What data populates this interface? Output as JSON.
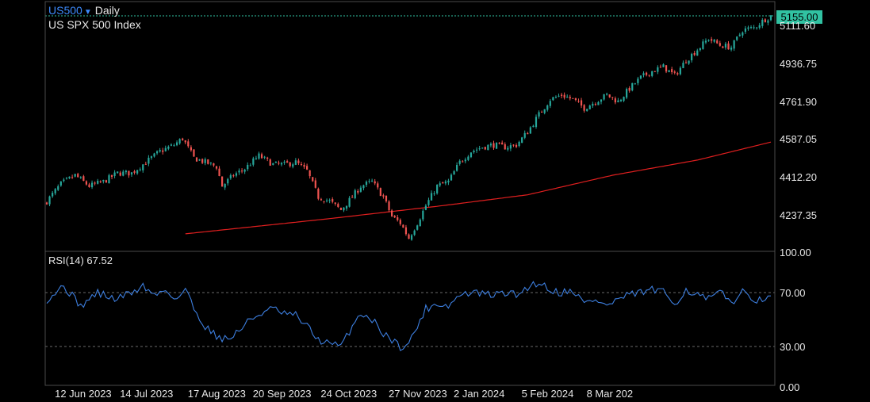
{
  "header": {
    "symbol": "US500",
    "symbol_dropdown_icon": "triangle-down-icon",
    "timeframe": "Daily",
    "instrument_name": "US SPX 500 Index"
  },
  "price_badge": "5155.00",
  "rsi_label": "RSI(14)",
  "rsi_value": "67.52",
  "colors": {
    "background": "#000000",
    "up": "#26a69a",
    "down": "#ef5350",
    "moving_average": "#e01f1f",
    "rsi": "#3d7fe0",
    "last_price": "#31c2a2",
    "grid_border": "#4a4a4a"
  },
  "chart_data": [
    {
      "type": "candlestick",
      "title": "US SPX 500 Index",
      "ylim": [
        4150,
        5200
      ],
      "y_tick_labels": [
        "5111.60",
        "4936.75",
        "4761.90",
        "4587.05",
        "4412.20",
        "4237.35"
      ],
      "y_ticks": [
        5111.6,
        4936.75,
        4761.9,
        4587.05,
        4412.2,
        4237.35
      ],
      "x_tick_labels": [
        "12 Jun 2023",
        "14 Jul 2023",
        "17 Aug 2023",
        "20 Sep 2023",
        "24 Oct 2023",
        "27 Nov 2023",
        "2 Jan 2024",
        "5 Feb 2024",
        "8 Mar 202"
      ],
      "last_price": 5155.0,
      "close_waypoints": [
        [
          0,
          4300
        ],
        [
          5,
          4380
        ],
        [
          10,
          4420
        ],
        [
          15,
          4370
        ],
        [
          20,
          4390
        ],
        [
          25,
          4430
        ],
        [
          30,
          4430
        ],
        [
          35,
          4480
        ],
        [
          40,
          4530
        ],
        [
          45,
          4560
        ],
        [
          48,
          4590
        ],
        [
          52,
          4500
        ],
        [
          56,
          4480
        ],
        [
          60,
          4460
        ],
        [
          62,
          4370
        ],
        [
          66,
          4420
        ],
        [
          70,
          4450
        ],
        [
          75,
          4510
        ],
        [
          80,
          4470
        ],
        [
          84,
          4470
        ],
        [
          88,
          4480
        ],
        [
          92,
          4440
        ],
        [
          96,
          4320
        ],
        [
          100,
          4300
        ],
        [
          104,
          4260
        ],
        [
          108,
          4320
        ],
        [
          111,
          4370
        ],
        [
          115,
          4390
        ],
        [
          119,
          4320
        ],
        [
          122,
          4230
        ],
        [
          125,
          4200
        ],
        [
          128,
          4130
        ],
        [
          131,
          4200
        ],
        [
          134,
          4280
        ],
        [
          138,
          4370
        ],
        [
          142,
          4390
        ],
        [
          146,
          4480
        ],
        [
          150,
          4530
        ],
        [
          154,
          4550
        ],
        [
          158,
          4560
        ],
        [
          162,
          4550
        ],
        [
          166,
          4560
        ],
        [
          170,
          4620
        ],
        [
          174,
          4700
        ],
        [
          178,
          4770
        ],
        [
          182,
          4790
        ],
        [
          186,
          4770
        ],
        [
          190,
          4730
        ],
        [
          194,
          4760
        ],
        [
          198,
          4790
        ],
        [
          202,
          4760
        ],
        [
          206,
          4820
        ],
        [
          210,
          4870
        ],
        [
          214,
          4900
        ],
        [
          218,
          4920
        ],
        [
          222,
          4880
        ],
        [
          226,
          4950
        ],
        [
          230,
          5000
        ],
        [
          234,
          5050
        ],
        [
          238,
          5020
        ],
        [
          242,
          5010
        ],
        [
          246,
          5090
        ],
        [
          250,
          5100
        ],
        [
          254,
          5140
        ],
        [
          256,
          5155
        ]
      ],
      "moving_average": {
        "name": "",
        "waypoints": [
          [
            49,
            4150
          ],
          [
            100,
            4220
          ],
          [
            140,
            4280
          ],
          [
            170,
            4330
          ],
          [
            200,
            4420
          ],
          [
            230,
            4490
          ],
          [
            256,
            4573
          ]
        ]
      }
    },
    {
      "type": "line",
      "title": "RSI(14)",
      "ylim": [
        0,
        100
      ],
      "y_tick_labels": [
        "100.00",
        "70.00",
        "30.00",
        "0.00"
      ],
      "y_ticks": [
        100,
        70,
        30,
        0
      ],
      "reference_lines": [
        70,
        30
      ],
      "series": [
        {
          "name": "RSI(14)",
          "waypoints": [
            [
              0,
              65
            ],
            [
              6,
              75
            ],
            [
              12,
              60
            ],
            [
              18,
              70
            ],
            [
              24,
              65
            ],
            [
              30,
              70
            ],
            [
              34,
              75
            ],
            [
              38,
              68
            ],
            [
              42,
              72
            ],
            [
              46,
              65
            ],
            [
              49,
              73
            ],
            [
              52,
              58
            ],
            [
              56,
              45
            ],
            [
              60,
              38
            ],
            [
              64,
              35
            ],
            [
              68,
              42
            ],
            [
              72,
              50
            ],
            [
              76,
              55
            ],
            [
              80,
              58
            ],
            [
              84,
              54
            ],
            [
              88,
              53
            ],
            [
              92,
              45
            ],
            [
              96,
              35
            ],
            [
              100,
              32
            ],
            [
              104,
              30
            ],
            [
              108,
              45
            ],
            [
              111,
              55
            ],
            [
              115,
              50
            ],
            [
              119,
              40
            ],
            [
              122,
              35
            ],
            [
              125,
              30
            ],
            [
              128,
              32
            ],
            [
              131,
              45
            ],
            [
              134,
              58
            ],
            [
              138,
              62
            ],
            [
              142,
              60
            ],
            [
              146,
              68
            ],
            [
              150,
              70
            ],
            [
              154,
              69
            ],
            [
              158,
              68
            ],
            [
              162,
              70
            ],
            [
              166,
              68
            ],
            [
              170,
              74
            ],
            [
              174,
              78
            ],
            [
              178,
              72
            ],
            [
              182,
              70
            ],
            [
              186,
              72
            ],
            [
              190,
              62
            ],
            [
              194,
              65
            ],
            [
              198,
              60
            ],
            [
              202,
              65
            ],
            [
              206,
              68
            ],
            [
              210,
              70
            ],
            [
              214,
              72
            ],
            [
              218,
              70
            ],
            [
              222,
              62
            ],
            [
              226,
              72
            ],
            [
              230,
              68
            ],
            [
              234,
              65
            ],
            [
              238,
              70
            ],
            [
              242,
              63
            ],
            [
              246,
              70
            ],
            [
              250,
              66
            ],
            [
              254,
              62
            ],
            [
              256,
              67.52
            ]
          ]
        }
      ]
    }
  ]
}
